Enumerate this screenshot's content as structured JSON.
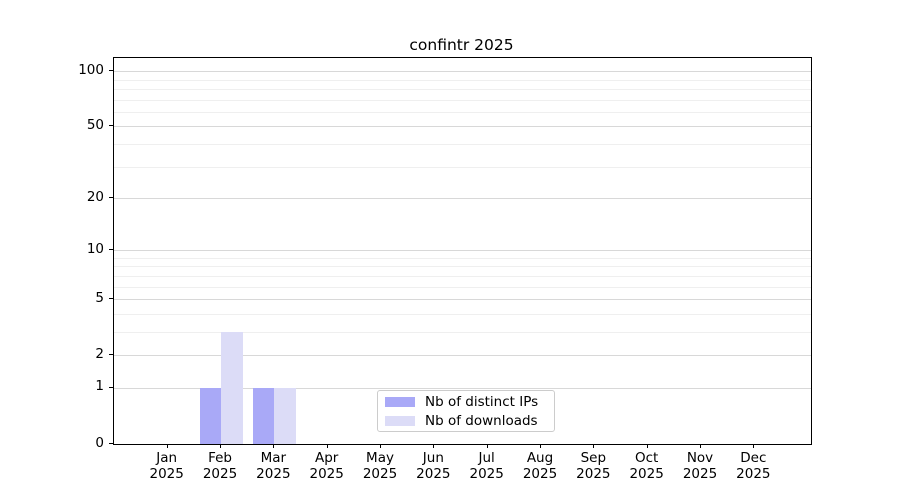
{
  "chart_data": {
    "type": "bar",
    "title": "confintr 2025",
    "categories": [
      "Jan",
      "Feb",
      "Mar",
      "Apr",
      "May",
      "Jun",
      "Jul",
      "Aug",
      "Sep",
      "Oct",
      "Nov",
      "Dec"
    ],
    "year": "2025",
    "series": [
      {
        "name": "Nb of distinct IPs",
        "color": "#a9a9f7",
        "values": [
          0,
          1,
          1,
          0,
          0,
          0,
          0,
          0,
          0,
          0,
          0,
          0
        ]
      },
      {
        "name": "Nb of downloads",
        "color": "#dcdcf7",
        "values": [
          0,
          3,
          1,
          0,
          0,
          0,
          0,
          0,
          0,
          0,
          0,
          0
        ]
      }
    ],
    "yscale": "log1p",
    "ylim": [
      0,
      118
    ],
    "yticks": [
      0,
      1,
      2,
      5,
      10,
      20,
      50,
      100
    ],
    "minor_gridlines": [
      3,
      4,
      6,
      7,
      8,
      9,
      30,
      40,
      60,
      70,
      80,
      90
    ],
    "grid": true,
    "legend_position": "bottom-center"
  },
  "colors": {
    "background": "#ffffff",
    "axis": "#000000",
    "text": "#000000",
    "major_grid": "#d8d8d8",
    "minor_grid": "#efefef",
    "legend_border": "#cccccc"
  }
}
